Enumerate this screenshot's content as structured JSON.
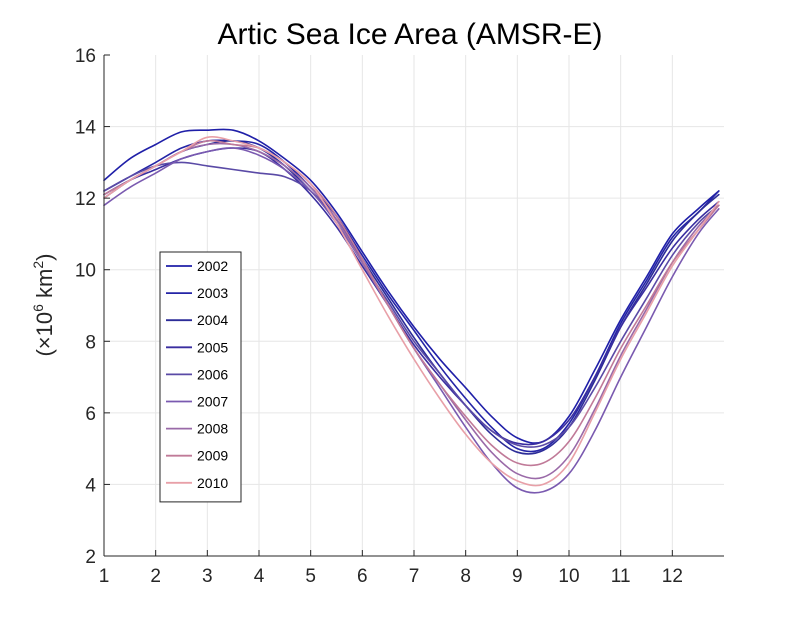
{
  "chart_data": {
    "type": "line",
    "title": "Artic Sea Ice Area (AMSR-E)",
    "ylabel": "(×10⁶ km²)",
    "ylabel_parts": {
      "open": "(×10",
      "exp1": "6",
      "mid": " km",
      "exp2": "2",
      "close": ")"
    },
    "xlabel": "",
    "xlim": [
      1,
      13
    ],
    "ylim": [
      2,
      16
    ],
    "xticks": [
      1,
      2,
      3,
      4,
      5,
      6,
      7,
      8,
      9,
      10,
      11,
      12
    ],
    "yticks": [
      2,
      4,
      6,
      8,
      10,
      12,
      14,
      16
    ],
    "grid": true,
    "legend_position": "left-middle",
    "x": [
      1,
      1.5,
      2,
      2.5,
      3,
      3.5,
      4,
      4.5,
      5,
      5.5,
      6,
      6.5,
      7,
      7.5,
      8,
      8.5,
      9,
      9.5,
      10,
      10.5,
      11,
      11.5,
      12,
      12.5,
      12.9
    ],
    "series": [
      {
        "name": "2002",
        "color": "#1f1fa8",
        "values": [
          12.5,
          13.1,
          13.5,
          13.85,
          13.9,
          13.9,
          13.6,
          13.1,
          12.5,
          11.6,
          10.5,
          9.4,
          8.4,
          7.5,
          6.7,
          5.9,
          5.3,
          5.2,
          5.9,
          7.2,
          8.6,
          9.8,
          11.0,
          11.7,
          12.2
        ]
      },
      {
        "name": "2003",
        "color": "#2424a6",
        "values": [
          12.2,
          12.6,
          13.0,
          13.4,
          13.6,
          13.6,
          13.5,
          13.0,
          12.3,
          11.5,
          10.4,
          9.3,
          8.3,
          7.3,
          6.4,
          5.6,
          5.0,
          5.0,
          5.7,
          7.0,
          8.5,
          9.7,
          10.9,
          11.6,
          12.2
        ]
      },
      {
        "name": "2004",
        "color": "#2c2c98",
        "values": [
          12.0,
          12.5,
          12.9,
          13.3,
          13.5,
          13.6,
          13.4,
          12.9,
          12.2,
          11.4,
          10.3,
          9.2,
          8.1,
          7.1,
          6.2,
          5.4,
          4.9,
          4.95,
          5.6,
          6.9,
          8.4,
          9.6,
          10.8,
          11.6,
          12.1
        ]
      },
      {
        "name": "2005",
        "color": "#3a2ea0",
        "values": [
          12.1,
          12.5,
          12.8,
          13.1,
          13.3,
          13.4,
          13.3,
          12.8,
          12.1,
          11.2,
          10.1,
          9.0,
          7.9,
          7.0,
          6.2,
          5.5,
          5.15,
          5.2,
          5.8,
          7.0,
          8.4,
          9.5,
          10.6,
          11.4,
          11.9
        ]
      },
      {
        "name": "2006",
        "color": "#5a4aa6",
        "values": [
          12.2,
          12.6,
          12.9,
          13.0,
          12.9,
          12.8,
          12.7,
          12.6,
          12.2,
          11.4,
          10.2,
          9.1,
          8.0,
          7.1,
          6.2,
          5.5,
          5.1,
          5.1,
          5.6,
          6.7,
          8.0,
          9.2,
          10.4,
          11.3,
          11.8
        ]
      },
      {
        "name": "2007",
        "color": "#7a5ab0",
        "values": [
          11.8,
          12.3,
          12.7,
          13.1,
          13.3,
          13.4,
          13.2,
          12.8,
          12.2,
          11.3,
          10.2,
          9.0,
          7.8,
          6.7,
          5.6,
          4.6,
          3.9,
          3.8,
          4.3,
          5.5,
          7.0,
          8.4,
          9.8,
          11.0,
          11.7
        ]
      },
      {
        "name": "2008",
        "color": "#9a6aa8",
        "values": [
          12.0,
          12.5,
          12.9,
          13.3,
          13.5,
          13.5,
          13.3,
          12.9,
          12.3,
          11.4,
          10.2,
          9.0,
          7.8,
          6.8,
          5.8,
          4.9,
          4.3,
          4.2,
          4.8,
          6.1,
          7.6,
          8.9,
          10.2,
          11.2,
          11.8
        ]
      },
      {
        "name": "2009",
        "color": "#c07a98",
        "values": [
          12.1,
          12.5,
          12.9,
          13.3,
          13.6,
          13.5,
          13.4,
          13.0,
          12.4,
          11.5,
          10.3,
          9.0,
          7.8,
          6.8,
          5.9,
          5.1,
          4.6,
          4.6,
          5.2,
          6.4,
          7.8,
          9.0,
          10.2,
          11.1,
          11.8
        ]
      },
      {
        "name": "2010",
        "color": "#e8a0a8",
        "values": [
          12.0,
          12.5,
          12.9,
          13.3,
          13.7,
          13.6,
          13.4,
          13.0,
          12.4,
          11.3,
          10.0,
          8.7,
          7.5,
          6.4,
          5.4,
          4.6,
          4.1,
          4.0,
          4.6,
          6.0,
          7.5,
          8.8,
          10.1,
          11.1,
          11.9
        ]
      }
    ]
  }
}
